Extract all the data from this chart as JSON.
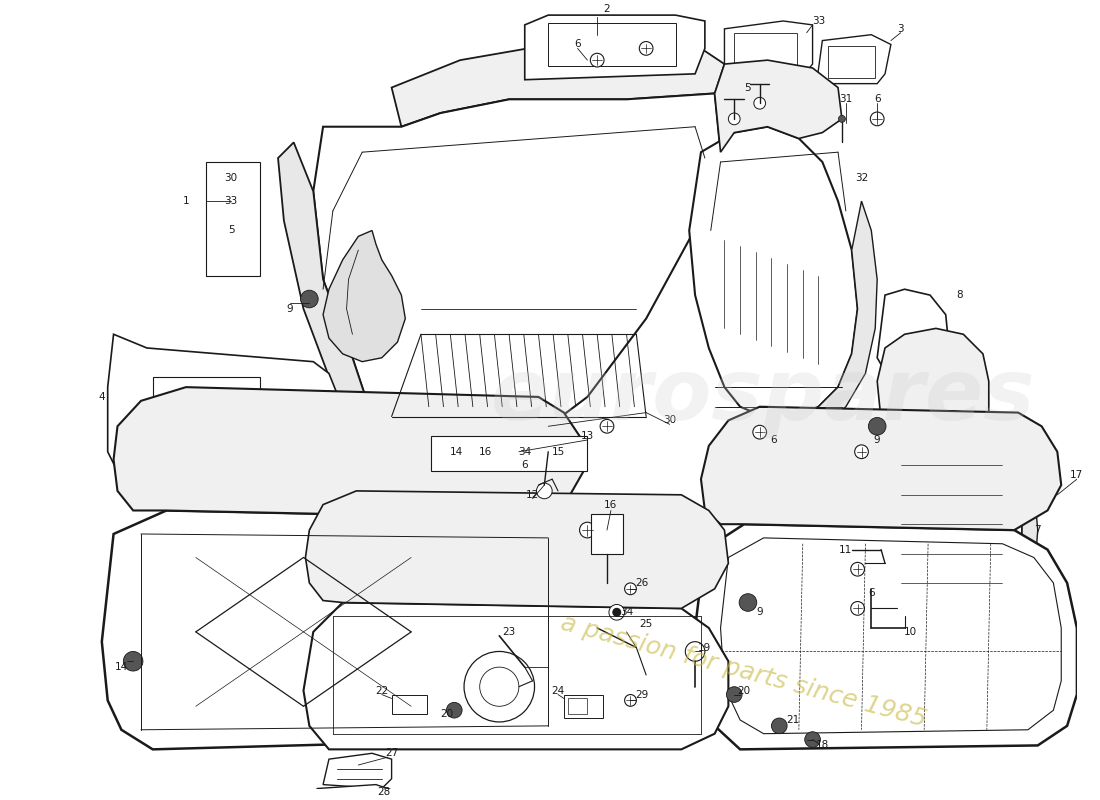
{
  "bg": "#ffffff",
  "lc": "#1a1a1a",
  "fs": 7.5,
  "wm1": "eurospares",
  "wm2": "a passion for parts since 1985",
  "wm1_color": "#cccccc",
  "wm2_color": "#c8b840",
  "fig_w": 11.0,
  "fig_h": 8.0,
  "fig_dpi": 100
}
